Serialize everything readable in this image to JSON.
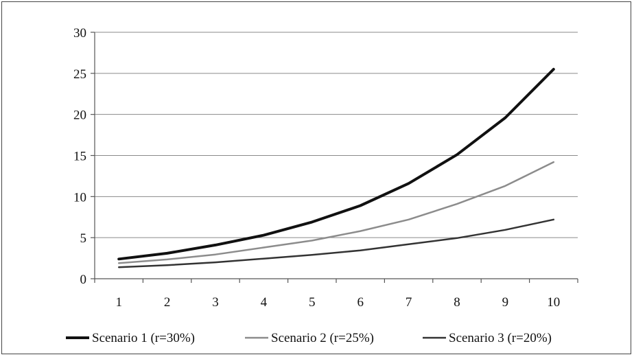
{
  "chart_data": {
    "type": "line",
    "x": [
      1,
      2,
      3,
      4,
      5,
      6,
      7,
      8,
      9,
      10
    ],
    "ylim": [
      0,
      30
    ],
    "yticks": [
      0,
      5,
      10,
      15,
      20,
      25,
      30
    ],
    "xlabel": "",
    "ylabel": "",
    "title": "",
    "grid": "horizontal",
    "legend": "bottom",
    "series": [
      {
        "name": "Scenario 1 (r=30%)",
        "color": "#111111",
        "width": 4,
        "values": [
          2.4,
          3.1,
          4.1,
          5.3,
          6.9,
          8.9,
          11.6,
          15.1,
          19.6,
          25.5
        ]
      },
      {
        "name": "Scenario 2 (r=25%)",
        "color": "#8c8c8c",
        "width": 2.5,
        "values": [
          1.9,
          2.35,
          2.95,
          3.8,
          4.65,
          5.8,
          7.2,
          9.1,
          11.3,
          14.2
        ]
      },
      {
        "name": "Scenario 3 (r=20%)",
        "color": "#333333",
        "width": 2.5,
        "values": [
          1.4,
          1.65,
          2.0,
          2.45,
          2.9,
          3.45,
          4.2,
          4.95,
          5.95,
          7.2
        ]
      }
    ]
  }
}
